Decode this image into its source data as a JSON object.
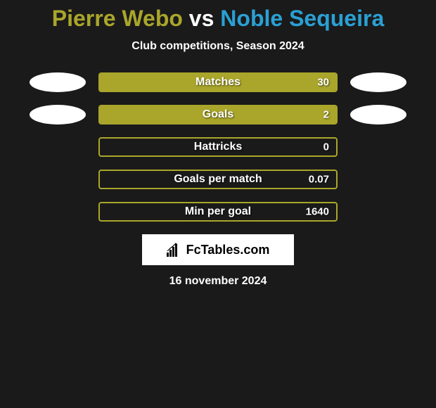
{
  "title": {
    "player1": "Pierre Webo",
    "vs": " vs ",
    "player2": "Noble Sequeira",
    "player1_color": "#a9a62b",
    "player2_color": "#2aa0d4"
  },
  "subtitle": "Club competitions, Season 2024",
  "bar_border_color": "#a9a62b",
  "bar_fill_color": "#a9a62b",
  "avatars": {
    "left_count": 2,
    "right_count": 2
  },
  "stats": [
    {
      "label": "Matches",
      "value": "30",
      "fill": 1.0,
      "show_avatars": true
    },
    {
      "label": "Goals",
      "value": "2",
      "fill": 1.0,
      "show_avatars": true
    },
    {
      "label": "Hattricks",
      "value": "0",
      "fill": 0.0,
      "show_avatars": false
    },
    {
      "label": "Goals per match",
      "value": "0.07",
      "fill": 0.0,
      "show_avatars": false
    },
    {
      "label": "Min per goal",
      "value": "1640",
      "fill": 0.0,
      "show_avatars": false
    }
  ],
  "logo": {
    "text": "FcTables.com"
  },
  "date": "16 november 2024",
  "background_color": "#1a1a1a"
}
